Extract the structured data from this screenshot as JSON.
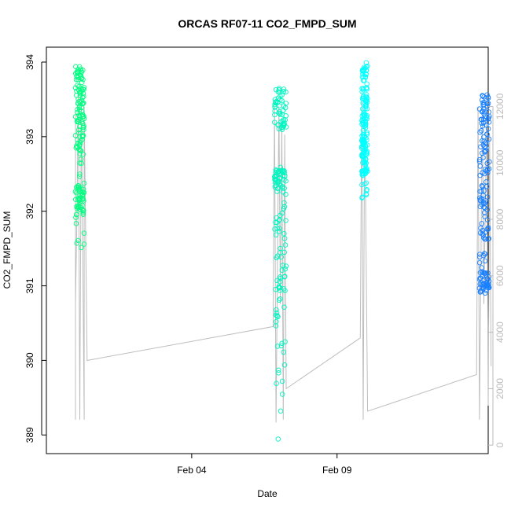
{
  "chart_data": {
    "type": "scatter",
    "title": "ORCAS RF07-11 CO2_FMPD_SUM",
    "xlabel": "Date",
    "ylabel": "CO2_FMPD_SUM",
    "x_ticks": [
      {
        "label": "Feb 04",
        "value": 4.0
      },
      {
        "label": "Feb 09",
        "value": 9.0
      }
    ],
    "xlim": [
      -1.0,
      14.2
    ],
    "ylim": [
      388.75,
      394.2
    ],
    "y_ticks": [
      389,
      390,
      391,
      392,
      393,
      394
    ],
    "y2_ticks": [
      0,
      2000,
      4000,
      6000,
      8000,
      10000,
      12000
    ],
    "y2lim": [
      -300,
      14100
    ],
    "grid": false,
    "colors": {
      "flight_1": "#00ff80",
      "flight_2": "#00f5c0",
      "flight_3": "#00ffff",
      "flight_4": "#1a80ff",
      "altitude_line": "#bebebe",
      "axis": "#000000",
      "right_axis": "#bbbbbb"
    },
    "series": [
      {
        "x": [
          0.0,
          0.3
        ],
        "y_min": 391.45,
        "y_max": 393.95,
        "dense_ranges": [
          [
            393.5,
            393.95
          ],
          [
            392.8,
            393.5
          ],
          [
            391.9,
            392.5
          ]
        ]
      },
      {
        "x": [
          6.85,
          7.25
        ],
        "y_min": 388.9,
        "y_max": 393.65,
        "dense_ranges": [
          [
            393.1,
            393.65
          ],
          [
            392.3,
            392.6
          ],
          [
            390.5,
            392.0
          ]
        ]
      },
      {
        "x": [
          9.85,
          10.05
        ],
        "y_min": 392.15,
        "y_max": 394.0,
        "dense_ranges": [
          [
            393.0,
            393.95
          ],
          [
            392.5,
            393.0
          ]
        ]
      },
      {
        "x": [
          13.9,
          14.25
        ],
        "y_min": 390.9,
        "y_max": 393.7,
        "dense_ranges": [
          [
            392.8,
            393.6
          ],
          [
            391.6,
            392.6
          ],
          [
            390.9,
            391.2
          ]
        ]
      }
    ],
    "altitude": [
      [
        0.0,
        900
      ],
      [
        0.0,
        11800
      ],
      [
        0.0,
        5000
      ],
      [
        0.05,
        8000
      ],
      [
        0.1,
        12500
      ],
      [
        0.15,
        900
      ],
      [
        0.2,
        12000
      ],
      [
        0.25,
        7000
      ],
      [
        0.3,
        900
      ],
      [
        0.3,
        12000
      ],
      [
        0.4,
        3000
      ],
      [
        6.8,
        4200
      ],
      [
        6.85,
        12000
      ],
      [
        6.9,
        800
      ],
      [
        7.0,
        12000
      ],
      [
        7.05,
        5000
      ],
      [
        7.1,
        11500
      ],
      [
        7.15,
        900
      ],
      [
        7.2,
        11000
      ],
      [
        7.25,
        2000
      ],
      [
        9.8,
        3800
      ],
      [
        9.85,
        12500
      ],
      [
        9.9,
        900
      ],
      [
        9.95,
        12000
      ],
      [
        10.05,
        1200
      ],
      [
        13.8,
        2500
      ],
      [
        13.85,
        12000
      ],
      [
        13.9,
        900
      ],
      [
        14.0,
        12000
      ],
      [
        14.05,
        5000
      ],
      [
        14.15,
        12000
      ],
      [
        14.2,
        1400
      ],
      [
        14.25,
        11000
      ],
      [
        14.3,
        2800
      ]
    ]
  }
}
